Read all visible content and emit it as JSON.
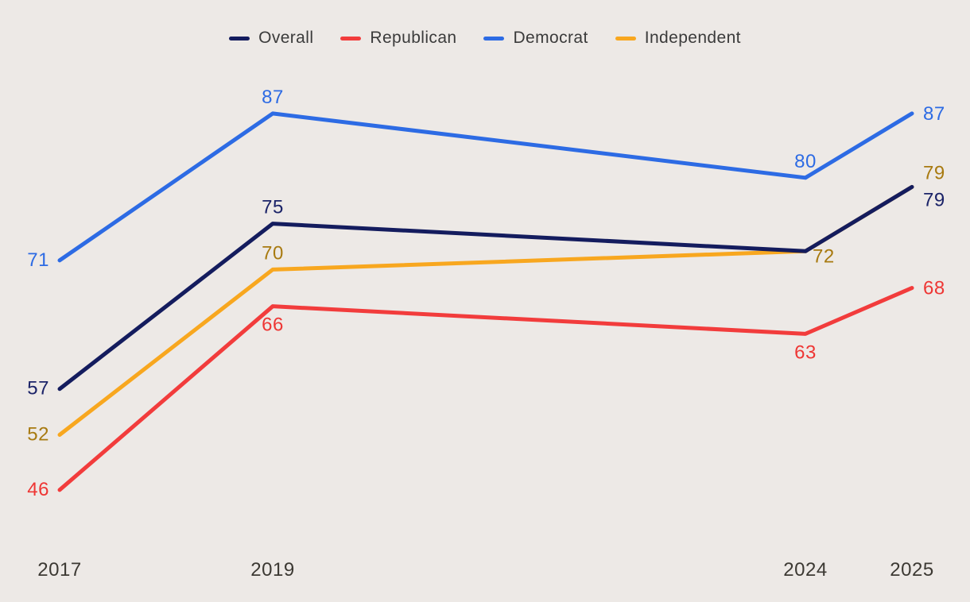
{
  "background_color": "#EDE9E6",
  "axis_text_color": "#3C3933",
  "legend": {
    "items": [
      {
        "label": "Overall",
        "color": "#141C5E"
      },
      {
        "label": "Republican",
        "color": "#F23C3C"
      },
      {
        "label": "Democrat",
        "color": "#2D6BE4"
      },
      {
        "label": "Independent",
        "color": "#F8A71F"
      }
    ]
  },
  "chart_data": {
    "type": "line",
    "title": "",
    "xlabel": "",
    "ylabel": "",
    "x": [
      2017,
      2019,
      2024,
      2025
    ],
    "x_tick_labels": [
      "2017",
      "2019",
      "2024",
      "2025"
    ],
    "ylim": [
      40,
      95
    ],
    "grid": false,
    "axes_visible": false,
    "legend_position": "top-center",
    "series": [
      {
        "name": "Overall",
        "color": "#141C5E",
        "label_color": "#1B2368",
        "values": [
          57,
          75,
          72,
          79
        ],
        "label_placements": [
          "left",
          "above",
          "none",
          "right-below"
        ]
      },
      {
        "name": "Republican",
        "color": "#F23C3C",
        "label_color": "#EE3634",
        "values": [
          46,
          66,
          63,
          68
        ],
        "label_placements": [
          "left",
          "below",
          "below",
          "right"
        ]
      },
      {
        "name": "Democrat",
        "color": "#2D6BE4",
        "label_color": "#2D6BE4",
        "values": [
          71,
          87,
          80,
          87
        ],
        "label_placements": [
          "left",
          "above",
          "above",
          "right"
        ]
      },
      {
        "name": "Independent",
        "color": "#F8A71F",
        "label_color": "#A87A10",
        "values": [
          52,
          70,
          72,
          79
        ],
        "label_placements": [
          "left",
          "above",
          "right-low",
          "right-above"
        ]
      }
    ],
    "draw_order": [
      "Independent",
      "Republican",
      "Democrat",
      "Overall"
    ]
  }
}
